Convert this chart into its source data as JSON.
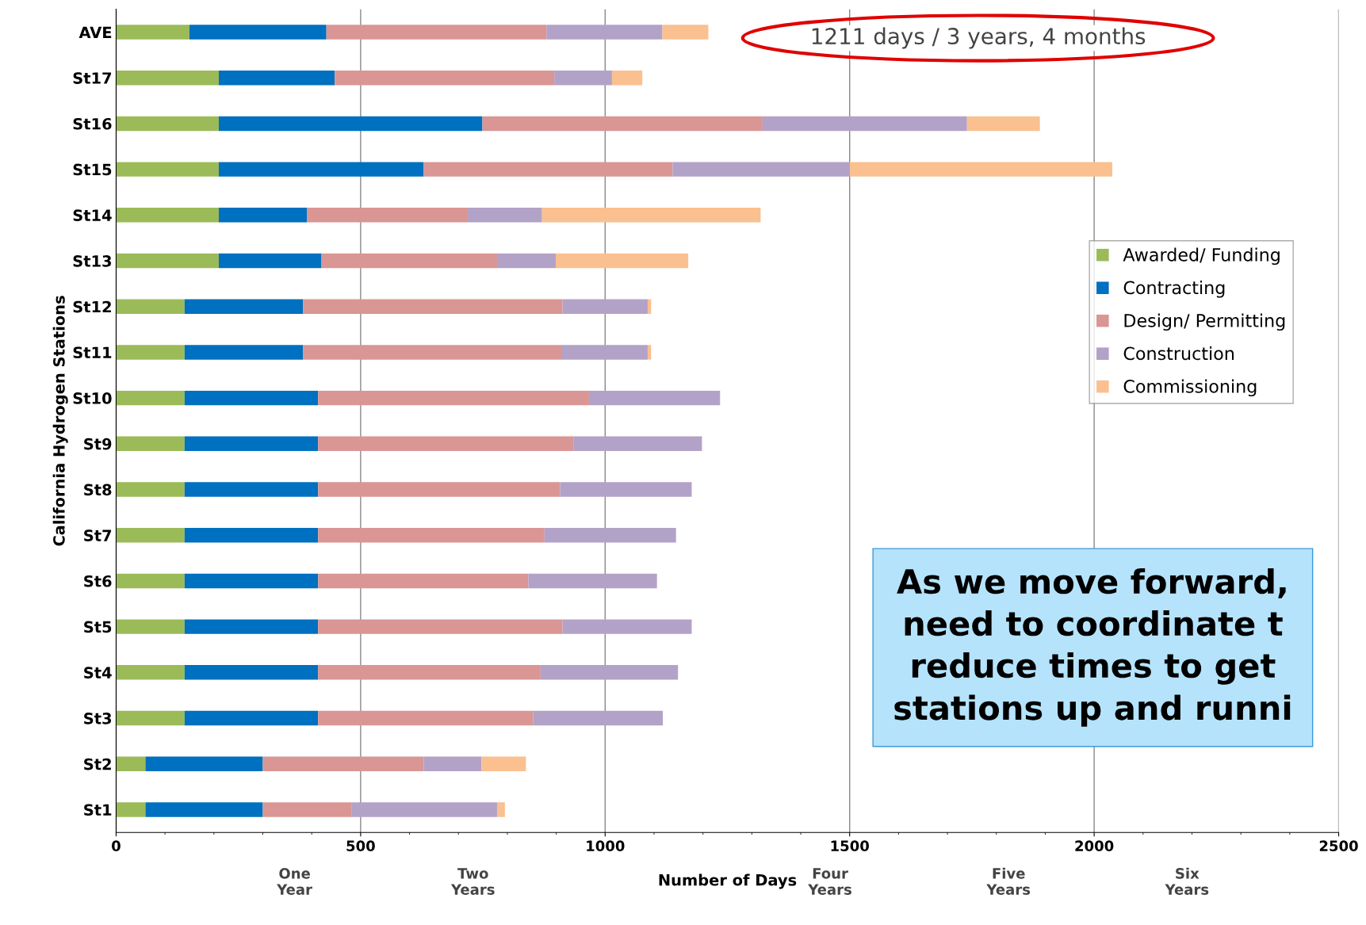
{
  "chart_data": {
    "type": "bar",
    "orientation": "horizontal",
    "stacked": true,
    "xlabel": "Number of Days",
    "ylabel": "California Hydrogen Stations",
    "categories": [
      "AVE",
      "St17",
      "St16",
      "St15",
      "St14",
      "St13",
      "St12",
      "St11",
      "St10",
      "St9",
      "St8",
      "St7",
      "St6",
      "St5",
      "St4",
      "St3",
      "St2",
      "St1"
    ],
    "series": [
      {
        "name": "Awarded/ Funding",
        "color": "#9bbb59",
        "values": [
          150,
          210,
          210,
          210,
          210,
          210,
          140,
          140,
          140,
          140,
          140,
          140,
          140,
          140,
          140,
          140,
          60,
          60
        ]
      },
      {
        "name": "Contracting",
        "color": "#0070c0",
        "values": [
          280,
          237,
          539,
          419,
          180,
          210,
          242,
          242,
          273,
          273,
          273,
          273,
          273,
          273,
          273,
          273,
          240,
          240
        ]
      },
      {
        "name": "Design/ Permitting",
        "color": "#d99694",
        "values": [
          450,
          449,
          573,
          509,
          329,
          359,
          531,
          530,
          554,
          522,
          495,
          463,
          430,
          500,
          455,
          440,
          329,
          181
        ]
      },
      {
        "name": "Construction",
        "color": "#b3a2c7",
        "values": [
          237,
          118,
          418,
          362,
          152,
          120,
          174,
          175,
          268,
          263,
          269,
          269,
          263,
          264,
          281,
          265,
          118,
          298
        ]
      },
      {
        "name": "Commissioning",
        "color": "#fac090",
        "values": [
          94,
          62,
          149,
          537,
          447,
          271,
          7,
          7,
          0,
          0,
          0,
          0,
          0,
          0,
          0,
          0,
          91,
          16
        ]
      }
    ],
    "xlim": [
      0,
      2500
    ],
    "xticks": [
      0,
      500,
      1000,
      1500,
      2000,
      2500
    ],
    "grid": "x",
    "legend": "right",
    "annotations": [
      "1211 days / 3 years, 4 months",
      "One\nYear",
      "Two\nYears",
      "Four\nYears",
      "Five\nYears",
      "Six\nYears",
      "As we move forward,\nneed to coordinate t\nreduce times to get\nstations up and runni"
    ]
  }
}
